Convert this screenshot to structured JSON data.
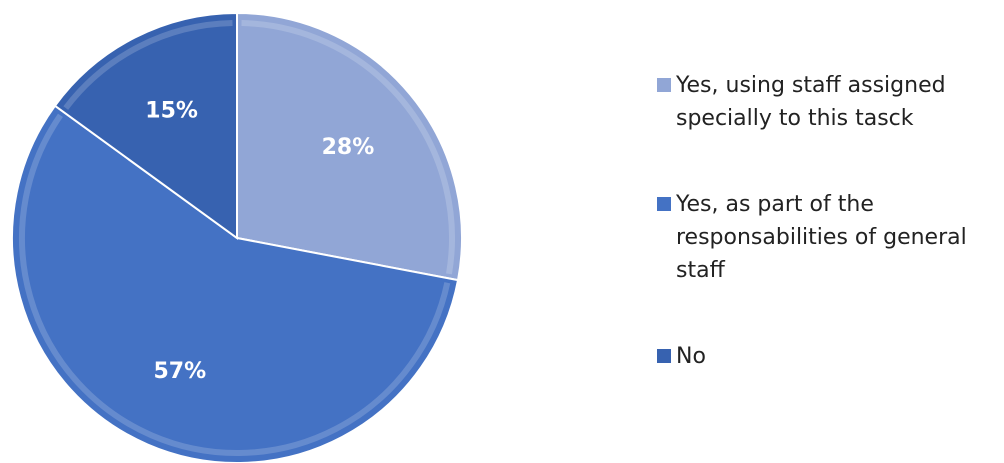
{
  "chart_data": {
    "type": "pie",
    "categories": [
      "Yes, using staff assigned specially to this tasck",
      "Yes, as part of the responsabilities of general staff",
      "No"
    ],
    "values": [
      28,
      57,
      15
    ],
    "value_labels": [
      "28%",
      "57%",
      "15%"
    ],
    "legend_lines": [
      [
        "Yes, using staff assigned",
        "specially to this tasck"
      ],
      [
        "Yes, as part of the",
        "responsabilities of general",
        "staff"
      ],
      [
        "No"
      ]
    ],
    "colors": [
      "#91a6d6",
      "#4472c4",
      "#3762b0"
    ],
    "legend_position": "right",
    "start_angle_deg": 0,
    "direction": "clockwise"
  }
}
